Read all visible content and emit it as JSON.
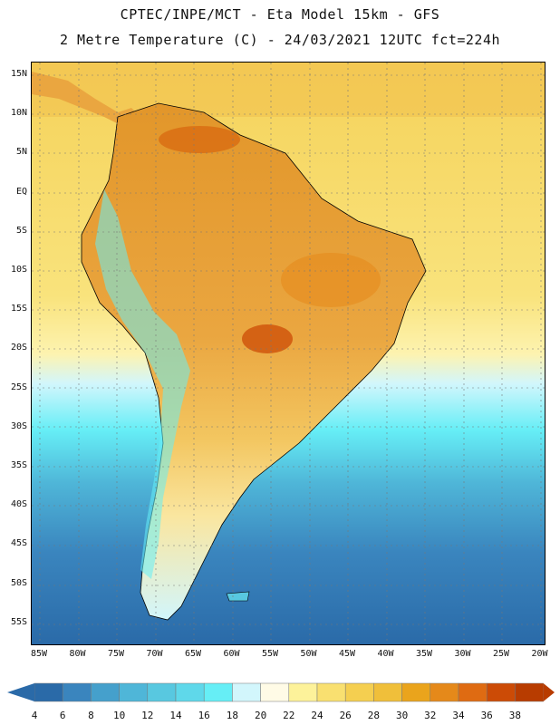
{
  "header": {
    "title_line1": "CPTEC/INPE/MCT -  Eta Model 15km - GFS",
    "title_line2": "2 Metre Temperature (C) - 24/03/2021 12UTC fct=224h"
  },
  "map": {
    "lat_labels": [
      "15N",
      "10N",
      "5N",
      "EQ",
      "5S",
      "10S",
      "15S",
      "20S",
      "25S",
      "30S",
      "35S",
      "40S",
      "45S",
      "50S",
      "55S"
    ],
    "lon_labels": [
      "85W",
      "80W",
      "75W",
      "70W",
      "65W",
      "60W",
      "55W",
      "50W",
      "45W",
      "40W",
      "35W",
      "30W",
      "25W",
      "20W"
    ]
  },
  "colorbar": {
    "labels": [
      "4",
      "6",
      "8",
      "10",
      "12",
      "14",
      "16",
      "18",
      "20",
      "22",
      "24",
      "26",
      "28",
      "30",
      "32",
      "34",
      "36",
      "38"
    ],
    "colors": [
      "#2a6aa8",
      "#3a85be",
      "#45a0cc",
      "#4fb6d8",
      "#58c8e0",
      "#5fd8ea",
      "#66eef6",
      "#d2f6fc",
      "#fffbe6",
      "#fdf29a",
      "#f9e070",
      "#f5cf50",
      "#f0bf3a",
      "#eaa41c",
      "#e5891a",
      "#df6b12",
      "#cc4b06",
      "#b83c00"
    ]
  }
}
